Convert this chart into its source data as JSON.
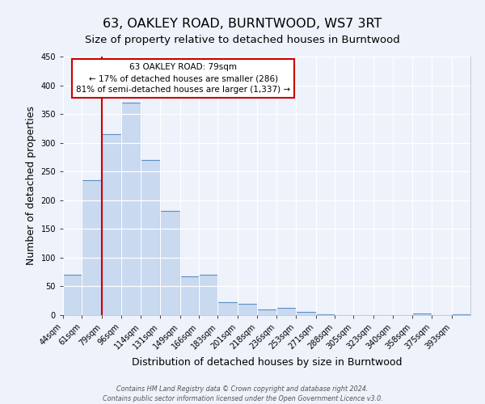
{
  "title": "63, OAKLEY ROAD, BURNTWOOD, WS7 3RT",
  "subtitle": "Size of property relative to detached houses in Burntwood",
  "xlabel": "Distribution of detached houses by size in Burntwood",
  "ylabel": "Number of detached properties",
  "footer_line1": "Contains HM Land Registry data © Crown copyright and database right 2024.",
  "footer_line2": "Contains public sector information licensed under the Open Government Licence v3.0.",
  "bar_labels": [
    "44sqm",
    "61sqm",
    "79sqm",
    "96sqm",
    "114sqm",
    "131sqm",
    "149sqm",
    "166sqm",
    "183sqm",
    "201sqm",
    "218sqm",
    "236sqm",
    "253sqm",
    "271sqm",
    "288sqm",
    "305sqm",
    "323sqm",
    "340sqm",
    "358sqm",
    "375sqm",
    "393sqm"
  ],
  "bar_values": [
    70,
    235,
    315,
    370,
    270,
    182,
    68,
    70,
    23,
    20,
    10,
    12,
    5,
    2,
    0,
    0,
    0,
    0,
    3,
    0,
    2
  ],
  "bin_edges": [
    44,
    61,
    79,
    96,
    114,
    131,
    149,
    166,
    183,
    201,
    218,
    236,
    253,
    271,
    288,
    305,
    323,
    340,
    358,
    375,
    393,
    410
  ],
  "bar_color": "#c9d9f0",
  "bar_edge_color": "#5b8ec4",
  "bar_edge_width": 0.8,
  "vline_x": 79,
  "vline_color": "#cc0000",
  "vline_linewidth": 1.5,
  "annotation_text_line1": "63 OAKLEY ROAD: 79sqm",
  "annotation_text_line2": "← 17% of detached houses are smaller (286)",
  "annotation_text_line3": "81% of semi-detached houses are larger (1,337) →",
  "annotation_box_color": "#cc0000",
  "annotation_fill_color": "white",
  "ylim": [
    0,
    450
  ],
  "yticks": [
    0,
    50,
    100,
    150,
    200,
    250,
    300,
    350,
    400,
    450
  ],
  "background_color": "#eef2fa",
  "grid_color": "white",
  "title_fontsize": 11.5,
  "subtitle_fontsize": 9.5,
  "axis_label_fontsize": 9,
  "tick_fontsize": 7,
  "annot_fontsize": 7.5,
  "footer_fontsize": 5.8
}
